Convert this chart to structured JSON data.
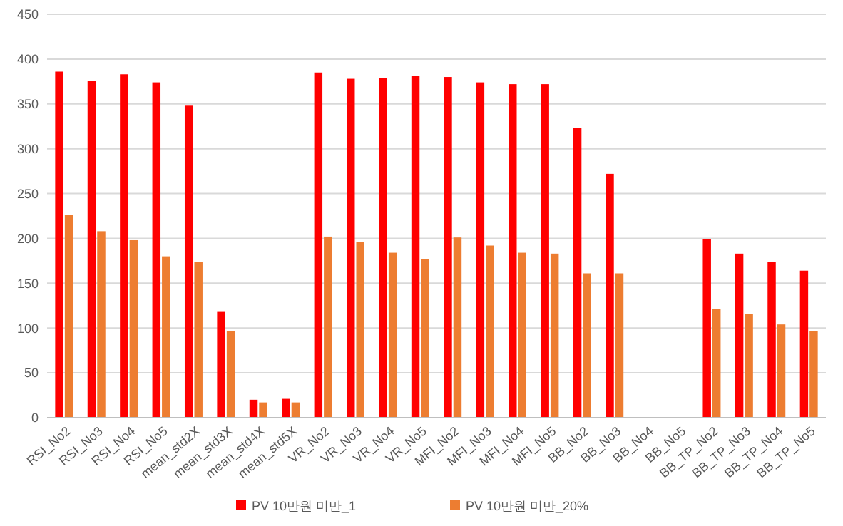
{
  "chart_data": {
    "type": "bar",
    "categories": [
      "RSI_No2",
      "RSI_No3",
      "RSI_No4",
      "RSI_No5",
      "mean_std2X",
      "mean_std3X",
      "mean_std4X",
      "mean_std5X",
      "VR_No2",
      "VR_No3",
      "VR_No4",
      "VR_No5",
      "MFI_No2",
      "MFI_No3",
      "MFI_No4",
      "MFI_No5",
      "BB_No2",
      "BB_No3",
      "BB_No4",
      "BB_No5",
      "BB_TP_No2",
      "BB_TP_No3",
      "BB_TP_No4",
      "BB_TP_No5"
    ],
    "series": [
      {
        "name": "PV 10만원 미만_1",
        "color": "#ff0000",
        "values": [
          386,
          376,
          383,
          374,
          348,
          118,
          20,
          21,
          385,
          378,
          379,
          381,
          380,
          374,
          372,
          372,
          323,
          272,
          null,
          null,
          199,
          183,
          174,
          164
        ]
      },
      {
        "name": "PV 10만원 미만_20%",
        "color": "#ed7d31",
        "values": [
          226,
          208,
          198,
          180,
          174,
          97,
          17,
          17,
          202,
          196,
          184,
          177,
          201,
          192,
          184,
          183,
          161,
          161,
          null,
          null,
          121,
          116,
          104,
          97
        ]
      }
    ],
    "ylim": [
      0,
      450
    ],
    "yticks": [
      0,
      50,
      100,
      150,
      200,
      250,
      300,
      350,
      400,
      450
    ],
    "grid": "y",
    "legend": "bottom"
  }
}
